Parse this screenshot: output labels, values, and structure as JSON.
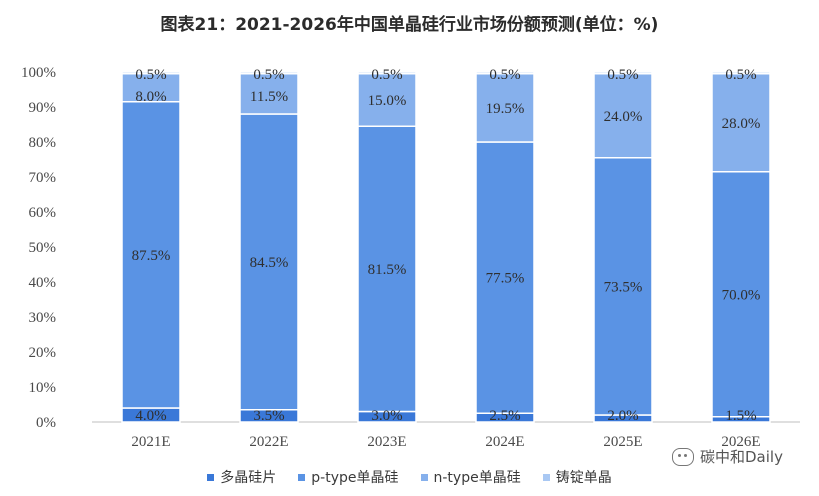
{
  "title": "图表21：2021-2026年中国单晶硅行业市场份额预测(单位：%)",
  "watermark": "碳中和Daily",
  "chart_data": {
    "type": "bar",
    "stacked": true,
    "categories": [
      "2021E",
      "2022E",
      "2023E",
      "2024E",
      "2025E",
      "2026E"
    ],
    "series": [
      {
        "name": "多晶硅片",
        "values": [
          4.0,
          3.5,
          3.0,
          2.5,
          2.0,
          1.5
        ],
        "labels": [
          "4.0%",
          "3.5%",
          "3.0%",
          "2.5%",
          "2.0%",
          "1.5%"
        ],
        "color": "#3a78d8"
      },
      {
        "name": "p-type单晶硅",
        "values": [
          87.5,
          84.5,
          81.5,
          77.5,
          73.5,
          70.0
        ],
        "labels": [
          "87.5%",
          "84.5%",
          "81.5%",
          "77.5%",
          "73.5%",
          "70.0%"
        ],
        "color": "#5a93e4"
      },
      {
        "name": "n-type单晶硅",
        "values": [
          8.0,
          11.5,
          15.0,
          19.5,
          24.0,
          28.0
        ],
        "labels": [
          "8.0%",
          "11.5%",
          "15.0%",
          "19.5%",
          "24.0%",
          "28.0%"
        ],
        "color": "#86b0ec"
      },
      {
        "name": "铸锭单晶",
        "values": [
          0.5,
          0.5,
          0.5,
          0.5,
          0.5,
          0.5
        ],
        "labels": [
          "0.5%",
          "0.5%",
          "0.5%",
          "0.5%",
          "0.5%",
          "0.5%"
        ],
        "color": "#a9c8f3"
      }
    ],
    "yticks": [
      "0%",
      "10%",
      "20%",
      "30%",
      "40%",
      "50%",
      "60%",
      "70%",
      "80%",
      "90%",
      "100%"
    ],
    "ylim": [
      0,
      100
    ],
    "grid": false,
    "legend": "bottom"
  }
}
